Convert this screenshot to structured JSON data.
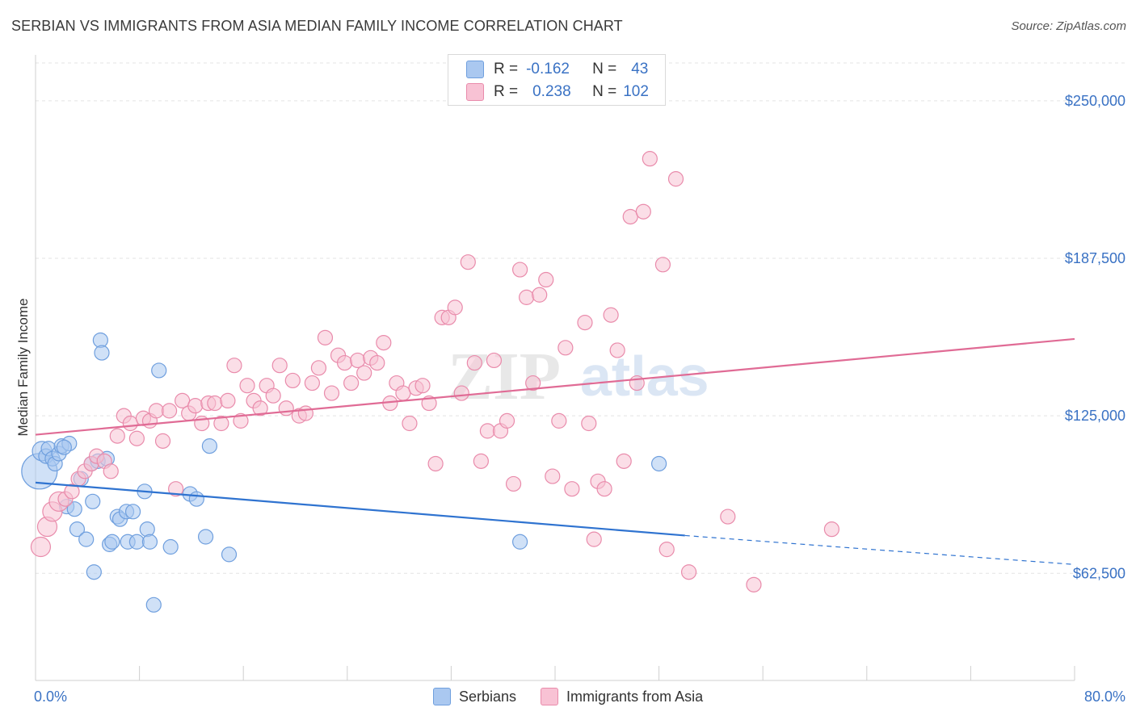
{
  "title": "SERBIAN VS IMMIGRANTS FROM ASIA MEDIAN FAMILY INCOME CORRELATION CHART",
  "source": "Source: ZipAtlas.com",
  "watermark": {
    "zip": "ZIP",
    "atlas": "atlas"
  },
  "legend": {
    "rows": [
      {
        "r_label": "R =",
        "r_value": "-0.162",
        "n_label": "N =",
        "n_value": "43",
        "color": "#aac8f0",
        "border": "#6f9fde"
      },
      {
        "r_label": "R =",
        "r_value": "0.238",
        "n_label": "N =",
        "n_value": "102",
        "color": "#f8c2d4",
        "border": "#e98bab"
      }
    ]
  },
  "bottom_legend": [
    {
      "label": "Serbians",
      "color": "#aac8f0",
      "border": "#6f9fde"
    },
    {
      "label": "Immigrants from Asia",
      "color": "#f8c2d4",
      "border": "#e98bab"
    }
  ],
  "chart_data": {
    "type": "scatter",
    "title": "SERBIAN VS IMMIGRANTS FROM ASIA MEDIAN FAMILY INCOME CORRELATION CHART",
    "xlabel": "",
    "ylabel": "Median Family Income",
    "xlim": [
      0,
      80
    ],
    "ylim": [
      20000,
      265000
    ],
    "x_tick_labels": [
      "0.0%",
      "80.0%"
    ],
    "y_ticks": [
      {
        "value": 62500,
        "label": "$62,500"
      },
      {
        "value": 125000,
        "label": "$125,000"
      },
      {
        "value": 187500,
        "label": "$187,500"
      },
      {
        "value": 250000,
        "label": "$250,000"
      }
    ],
    "series": [
      {
        "name": "Serbians",
        "color": "#6f9fde",
        "fill": "#aac8f0",
        "trend": {
          "x0": 0,
          "y0": 98500,
          "x1": 50,
          "y1": 77500,
          "dash_to_x": 80,
          "dash_to_y": 66000
        },
        "points": [
          [
            0.3,
            103000,
            22
          ],
          [
            0.5,
            111000,
            12
          ],
          [
            0.8,
            109000,
            9
          ],
          [
            1.0,
            112000,
            9
          ],
          [
            1.3,
            108000,
            9
          ],
          [
            1.5,
            106000,
            9
          ],
          [
            1.8,
            110000,
            9
          ],
          [
            2.0,
            113000,
            9
          ],
          [
            2.6,
            114000,
            9
          ],
          [
            2.4,
            89000,
            9
          ],
          [
            3.0,
            88000,
            9
          ],
          [
            3.2,
            80000,
            9
          ],
          [
            3.5,
            100000,
            9
          ],
          [
            3.9,
            76000,
            9
          ],
          [
            4.3,
            106000,
            9
          ],
          [
            4.8,
            107000,
            9
          ],
          [
            4.4,
            91000,
            9
          ],
          [
            4.5,
            63000,
            9
          ],
          [
            5.0,
            155000,
            9
          ],
          [
            5.1,
            150000,
            9
          ],
          [
            5.5,
            108000,
            9
          ],
          [
            5.7,
            74000,
            9
          ],
          [
            5.9,
            75000,
            9
          ],
          [
            6.3,
            85000,
            9
          ],
          [
            6.5,
            84000,
            9
          ],
          [
            7.0,
            87000,
            9
          ],
          [
            7.1,
            75000,
            9
          ],
          [
            7.5,
            87000,
            9
          ],
          [
            7.8,
            75000,
            9
          ],
          [
            8.4,
            95000,
            9
          ],
          [
            8.6,
            80000,
            9
          ],
          [
            8.8,
            75000,
            9
          ],
          [
            9.1,
            50000,
            9
          ],
          [
            9.5,
            143000,
            9
          ],
          [
            10.4,
            73000,
            9
          ],
          [
            11.9,
            94000,
            9
          ],
          [
            12.4,
            92000,
            9
          ],
          [
            13.1,
            77000,
            9
          ],
          [
            13.4,
            113000,
            9
          ],
          [
            14.9,
            70000,
            9
          ],
          [
            37.3,
            75000,
            9
          ],
          [
            48.0,
            106000,
            9
          ],
          [
            2.2,
            112500,
            9
          ]
        ]
      },
      {
        "name": "Immigrants from Asia",
        "color": "#e98bab",
        "fill": "#f8c2d4",
        "trend": {
          "x0": 0,
          "y0": 117500,
          "x1": 80,
          "y1": 155500
        },
        "points": [
          [
            0.4,
            73000,
            12
          ],
          [
            0.9,
            81000,
            12
          ],
          [
            1.3,
            87000,
            12
          ],
          [
            1.8,
            91000,
            12
          ],
          [
            2.3,
            92000,
            9
          ],
          [
            2.8,
            95000,
            9
          ],
          [
            3.3,
            100000,
            9
          ],
          [
            3.8,
            103000,
            9
          ],
          [
            4.3,
            106000,
            9
          ],
          [
            4.7,
            109000,
            9
          ],
          [
            5.3,
            107000,
            9
          ],
          [
            5.8,
            103000,
            9
          ],
          [
            6.3,
            117000,
            9
          ],
          [
            6.8,
            125000,
            9
          ],
          [
            7.3,
            122000,
            9
          ],
          [
            7.8,
            116000,
            9
          ],
          [
            8.3,
            124000,
            9
          ],
          [
            8.8,
            123000,
            9
          ],
          [
            9.3,
            127000,
            9
          ],
          [
            9.8,
            115000,
            9
          ],
          [
            10.3,
            127000,
            9
          ],
          [
            10.8,
            96000,
            9
          ],
          [
            11.3,
            131000,
            9
          ],
          [
            11.8,
            126000,
            9
          ],
          [
            12.3,
            129000,
            9
          ],
          [
            12.8,
            122000,
            9
          ],
          [
            13.3,
            130000,
            9
          ],
          [
            13.8,
            130000,
            9
          ],
          [
            14.3,
            122000,
            9
          ],
          [
            14.8,
            131000,
            9
          ],
          [
            15.3,
            145000,
            9
          ],
          [
            15.8,
            123000,
            9
          ],
          [
            16.3,
            137000,
            9
          ],
          [
            16.8,
            131000,
            9
          ],
          [
            17.3,
            128000,
            9
          ],
          [
            17.8,
            137000,
            9
          ],
          [
            18.3,
            133000,
            9
          ],
          [
            18.8,
            145000,
            9
          ],
          [
            19.3,
            128000,
            9
          ],
          [
            19.8,
            139000,
            9
          ],
          [
            20.3,
            125000,
            9
          ],
          [
            20.8,
            126000,
            9
          ],
          [
            21.3,
            138000,
            9
          ],
          [
            21.8,
            144000,
            9
          ],
          [
            22.3,
            156000,
            9
          ],
          [
            22.8,
            134000,
            9
          ],
          [
            23.3,
            149000,
            9
          ],
          [
            23.8,
            146000,
            9
          ],
          [
            24.3,
            138000,
            9
          ],
          [
            24.8,
            147000,
            9
          ],
          [
            25.3,
            142000,
            9
          ],
          [
            25.8,
            148000,
            9
          ],
          [
            26.3,
            146000,
            9
          ],
          [
            26.8,
            154000,
            9
          ],
          [
            27.3,
            130000,
            9
          ],
          [
            27.8,
            138000,
            9
          ],
          [
            28.3,
            134000,
            9
          ],
          [
            28.8,
            122000,
            9
          ],
          [
            29.3,
            136000,
            9
          ],
          [
            29.8,
            137000,
            9
          ],
          [
            30.3,
            130000,
            9
          ],
          [
            30.8,
            106000,
            9
          ],
          [
            31.3,
            164000,
            9
          ],
          [
            31.8,
            164000,
            9
          ],
          [
            32.3,
            168000,
            9
          ],
          [
            32.8,
            134000,
            9
          ],
          [
            33.3,
            186000,
            9
          ],
          [
            33.8,
            146000,
            9
          ],
          [
            34.3,
            107000,
            9
          ],
          [
            34.8,
            119000,
            9
          ],
          [
            35.3,
            147000,
            9
          ],
          [
            35.8,
            119000,
            9
          ],
          [
            36.3,
            123000,
            9
          ],
          [
            36.8,
            98000,
            9
          ],
          [
            37.3,
            183000,
            9
          ],
          [
            37.8,
            172000,
            9
          ],
          [
            38.3,
            138000,
            9
          ],
          [
            38.8,
            173000,
            9
          ],
          [
            39.3,
            179000,
            9
          ],
          [
            39.8,
            101000,
            9
          ],
          [
            40.3,
            123000,
            9
          ],
          [
            40.8,
            152000,
            9
          ],
          [
            41.3,
            96000,
            9
          ],
          [
            42.3,
            162000,
            9
          ],
          [
            42.6,
            122000,
            9
          ],
          [
            43.3,
            99000,
            9
          ],
          [
            43.8,
            96000,
            9
          ],
          [
            44.3,
            165000,
            9
          ],
          [
            44.8,
            151000,
            9
          ],
          [
            45.3,
            107000,
            9
          ],
          [
            45.8,
            204000,
            9
          ],
          [
            46.3,
            138000,
            9
          ],
          [
            46.8,
            206000,
            9
          ],
          [
            47.3,
            227000,
            9
          ],
          [
            48.3,
            185000,
            9
          ],
          [
            49.3,
            219000,
            9
          ],
          [
            48.6,
            72000,
            9
          ],
          [
            50.3,
            63000,
            9
          ],
          [
            53.3,
            85000,
            9
          ],
          [
            55.3,
            58000,
            9
          ],
          [
            61.3,
            80000,
            9
          ],
          [
            43.0,
            76000,
            9
          ]
        ]
      }
    ]
  }
}
